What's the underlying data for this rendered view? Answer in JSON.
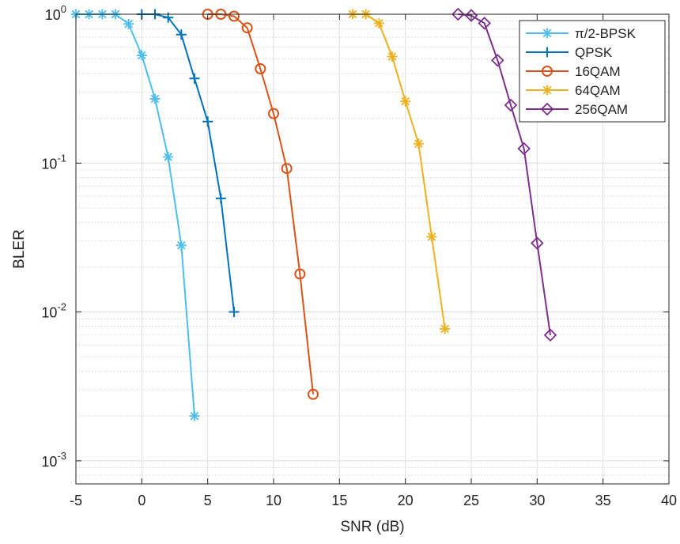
{
  "chart_data": {
    "type": "line",
    "title": "",
    "xlabel": "SNR (dB)",
    "ylabel": "BLER",
    "xlim": [
      -5,
      40
    ],
    "ylim": [
      0.0007,
      1
    ],
    "yscale": "log",
    "grid": true,
    "minor_grid": true,
    "legend_position": "top-right",
    "x_ticks": [
      {
        "value": -5,
        "label": "-5"
      },
      {
        "value": 0,
        "label": "0"
      },
      {
        "value": 5,
        "label": "5"
      },
      {
        "value": 10,
        "label": "10"
      },
      {
        "value": 15,
        "label": "15"
      },
      {
        "value": 20,
        "label": "20"
      },
      {
        "value": 25,
        "label": "25"
      },
      {
        "value": 30,
        "label": "30"
      },
      {
        "value": 35,
        "label": "35"
      },
      {
        "value": 40,
        "label": "40"
      }
    ],
    "y_ticks": [
      {
        "value": 1,
        "base": "10",
        "exp": "0"
      },
      {
        "value": 0.1,
        "base": "10",
        "exp": "-1"
      },
      {
        "value": 0.01,
        "base": "10",
        "exp": "-2"
      },
      {
        "value": 0.001,
        "base": "10",
        "exp": "-3"
      }
    ],
    "series": [
      {
        "name": "π/2-BPSK",
        "color": "#4DBEEE",
        "marker": "asterisk",
        "x": [
          -5,
          -4,
          -3,
          -2,
          -1,
          0,
          1,
          2,
          3,
          4
        ],
        "y": [
          1,
          1,
          1,
          1,
          0.86,
          0.53,
          0.27,
          0.11,
          0.028,
          0.002
        ]
      },
      {
        "name": "QPSK",
        "color": "#0072BD",
        "marker": "plus",
        "x": [
          0,
          1,
          2,
          3,
          4,
          5,
          6,
          7
        ],
        "y": [
          1,
          1,
          0.95,
          0.73,
          0.37,
          0.19,
          0.058,
          0.01
        ]
      },
      {
        "name": "16QAM",
        "color": "#D95319",
        "marker": "circle",
        "x": [
          5,
          6,
          7,
          8,
          9,
          10,
          11,
          12,
          13
        ],
        "y": [
          1,
          1,
          0.97,
          0.81,
          0.43,
          0.215,
          0.092,
          0.018,
          0.0028
        ]
      },
      {
        "name": "64QAM",
        "color": "#EDB120",
        "marker": "asterisk",
        "x": [
          16,
          17,
          18,
          19,
          20,
          21,
          22,
          23
        ],
        "y": [
          1,
          1,
          0.87,
          0.52,
          0.26,
          0.135,
          0.032,
          0.0077
        ]
      },
      {
        "name": "256QAM",
        "color": "#7E2F8E",
        "marker": "diamond",
        "x": [
          24,
          25,
          26,
          27,
          28,
          29,
          30,
          31
        ],
        "y": [
          1,
          0.98,
          0.87,
          0.49,
          0.245,
          0.125,
          0.029,
          0.007
        ]
      }
    ]
  }
}
